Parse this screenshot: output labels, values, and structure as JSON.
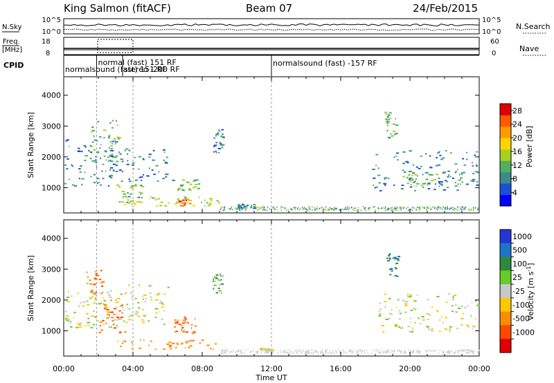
{
  "header": {
    "station": "King Salmon (fitACF)",
    "beam": "Beam 07",
    "date": "24/Feb/2015"
  },
  "strips": {
    "nsky_label": "N.Sky",
    "nsearch_label": "N.Search",
    "freq_label_1": "Freq.",
    "freq_label_2": "[MHz]",
    "nave_label": "Nave",
    "cpid_label": "CPID",
    "nsky_ticks_left": [
      "10^5",
      "10^0"
    ],
    "nsky_ticks_right": [
      "10^5",
      "10^0"
    ],
    "freq_ticks_left": [
      "18",
      "8"
    ],
    "nave_ticks_right": [
      "60",
      "0"
    ]
  },
  "cpid_segments": [
    {
      "label": "normalsound (fast) 151 RF",
      "start_hour": 0.0,
      "end_hour": 12.0
    },
    {
      "label": "normal (fast) 151 RF",
      "start_hour": 1.9,
      "end_hour": 3.6
    },
    {
      "label": "stereo -200 RF",
      "start_hour": 3.4,
      "end_hour": 5.0
    },
    {
      "label": "normalsound (fast) -157 RF",
      "start_hour": 12.0,
      "end_hour": 24.0
    }
  ],
  "panels": {
    "ylabel": "Slant Range [km]",
    "xlabel": "Time UT"
  },
  "colorbars": {
    "power_label": "Power [dB]",
    "velocity_label": "Velocity [m s",
    "velocity_unit_exp": "-1",
    "velocity_label_close": "]"
  },
  "chart_data": [
    {
      "type": "heatmap",
      "name": "power",
      "x_unit": "hours UT",
      "x_ticks": [
        "00:00",
        "04:00",
        "08:00",
        "12:00",
        "16:00",
        "20:00",
        "00:00"
      ],
      "x_tick_values": [
        0,
        4,
        8,
        12,
        16,
        20,
        24
      ],
      "xlim": [
        0,
        24
      ],
      "y_ticks": [
        1000,
        2000,
        3000,
        4000
      ],
      "ylim": [
        180,
        4600
      ],
      "colorbar_ticks": [
        4,
        8,
        12,
        16,
        20,
        24,
        28
      ],
      "colorbar_range": [
        0,
        30
      ],
      "colorbar_colors": [
        "#0000ff",
        "#1b4fd6",
        "#3a8a8a",
        "#50b060",
        "#a8d020",
        "#ffd400",
        "#ff9a00",
        "#ff5a00",
        "#e00000"
      ],
      "echo_regions": [
        {
          "t0": 0.0,
          "t1": 3.0,
          "r0": 1050,
          "r1": 2600,
          "power": 8
        },
        {
          "t0": 1.5,
          "t1": 3.2,
          "r0": 1800,
          "r1": 3200,
          "power": 12
        },
        {
          "t0": 2.5,
          "t1": 6.0,
          "r0": 1200,
          "r1": 2300,
          "power": 8
        },
        {
          "t0": 2.8,
          "t1": 9.0,
          "r0": 400,
          "r1": 700,
          "power": 16
        },
        {
          "t0": 6.5,
          "t1": 7.3,
          "r0": 400,
          "r1": 650,
          "power": 24
        },
        {
          "t0": 3.0,
          "t1": 4.5,
          "r0": 500,
          "r1": 1100,
          "power": 12
        },
        {
          "t0": 6.2,
          "t1": 7.8,
          "r0": 900,
          "r1": 1300,
          "power": 12
        },
        {
          "t0": 8.6,
          "t1": 9.2,
          "r0": 2100,
          "r1": 2900,
          "power": 8
        },
        {
          "t0": 10.0,
          "t1": 11.1,
          "r0": 330,
          "r1": 460,
          "power": 8
        },
        {
          "t0": 17.8,
          "t1": 24.0,
          "r0": 900,
          "r1": 2200,
          "power": 8
        },
        {
          "t0": 18.5,
          "t1": 19.2,
          "r0": 2600,
          "r1": 3500,
          "power": 12
        },
        {
          "t0": 19.5,
          "t1": 23.5,
          "r0": 1000,
          "r1": 1500,
          "power": 12
        }
      ]
    },
    {
      "type": "heatmap",
      "name": "velocity",
      "x_unit": "hours UT",
      "x_ticks": [
        "00:00",
        "04:00",
        "08:00",
        "12:00",
        "16:00",
        "20:00",
        "00:00"
      ],
      "x_tick_values": [
        0,
        4,
        8,
        12,
        16,
        20,
        24
      ],
      "xlim": [
        0,
        24
      ],
      "y_ticks": [
        1000,
        2000,
        3000,
        4000
      ],
      "ylim": [
        180,
        4600
      ],
      "colorbar_ticks": [
        "1000",
        "500",
        "100",
        "25",
        "-25",
        "-100",
        "-500",
        "-1000"
      ],
      "colorbar_colors": [
        "#2436d8",
        "#1d74c8",
        "#2c8a3c",
        "#67cc2a",
        "#c8c8c8",
        "#ffc800",
        "#ff8c00",
        "#ff4800",
        "#e00000"
      ],
      "echo_regions": [
        {
          "t0": 0.0,
          "t1": 3.0,
          "r0": 1050,
          "r1": 2300,
          "velocity": 0
        },
        {
          "t0": 1.3,
          "t1": 2.3,
          "r0": 2200,
          "r1": 3000,
          "velocity": -500
        },
        {
          "t0": 1.8,
          "t1": 3.5,
          "r0": 900,
          "r1": 2000,
          "velocity": -500
        },
        {
          "t0": 3.0,
          "t1": 9.0,
          "r0": 400,
          "r1": 700,
          "velocity": -300
        },
        {
          "t0": 3.0,
          "t1": 6.0,
          "r0": 1200,
          "r1": 2500,
          "velocity": 0
        },
        {
          "t0": 6.3,
          "t1": 7.6,
          "r0": 900,
          "r1": 1500,
          "velocity": -500
        },
        {
          "t0": 8.6,
          "t1": 9.1,
          "r0": 2200,
          "r1": 2900,
          "velocity": 100
        },
        {
          "t0": 11.3,
          "t1": 12.0,
          "r0": 330,
          "r1": 430,
          "velocity": -50
        },
        {
          "t0": 17.8,
          "t1": 24.0,
          "r0": 900,
          "r1": 2200,
          "velocity": 0
        },
        {
          "t0": 18.6,
          "t1": 19.3,
          "r0": 2700,
          "r1": 3500,
          "velocity": 500
        }
      ]
    }
  ]
}
